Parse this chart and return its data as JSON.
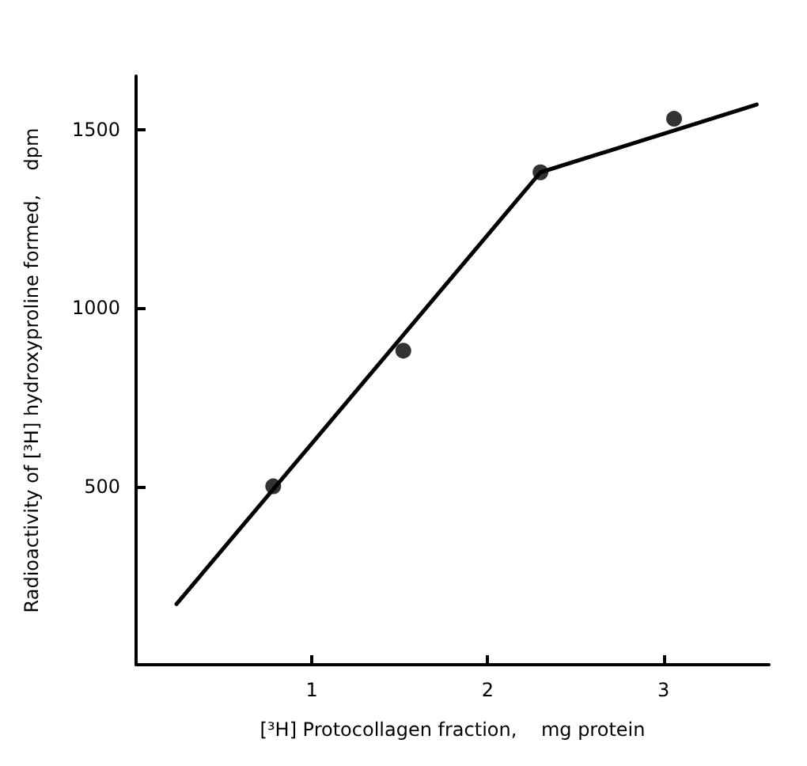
{
  "chart_data": {
    "type": "scatter",
    "xlabel": "[³H] Protocollagen fraction,    mg protein",
    "ylabel": "Radioactivity of [³H] hydroxyproline formed,    dpm",
    "series": [
      {
        "color": "#000000",
        "marker": "circle",
        "x": [
          0.78,
          1.52,
          2.3,
          3.06
        ],
        "values": [
          500,
          880,
          1380,
          1530
        ]
      },
      {
        "type": "line",
        "color": "#000000",
        "marker": "none",
        "x": [
          0.23,
          2.3,
          3.53
        ],
        "values": [
          170,
          1380,
          1570
        ]
      }
    ],
    "xlim": [
      0,
      3.6
    ],
    "xticks": [
      1,
      2,
      3
    ],
    "ylim": [
      0,
      1650
    ],
    "yticks": [
      500,
      1000,
      1500
    ],
    "grid": false,
    "line_style": "solid"
  }
}
